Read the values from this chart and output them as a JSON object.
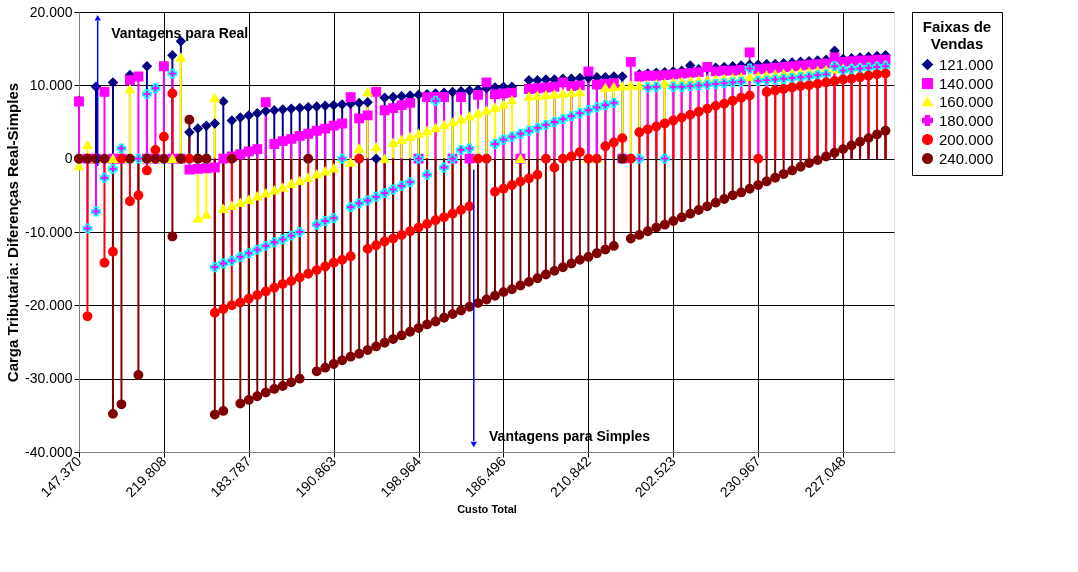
{
  "chart_data": {
    "type": "lollipop",
    "xlabel": "Custo Total",
    "ylabel": "Carga Tributaria: Diferenças Real-Simples",
    "legend_title": "Faixas de Vendas",
    "legend": "right",
    "grid": true,
    "annotations": [
      "Vantagens para Real",
      "Vantagens para Simples"
    ],
    "categories": [
      "147.370",
      null,
      null,
      null,
      null,
      null,
      null,
      null,
      null,
      null,
      "219.808",
      null,
      null,
      null,
      null,
      null,
      null,
      null,
      null,
      null,
      "183.787",
      null,
      null,
      null,
      null,
      null,
      null,
      null,
      null,
      null,
      "190.863",
      null,
      null,
      null,
      null,
      null,
      null,
      null,
      null,
      null,
      "198.964",
      null,
      null,
      null,
      null,
      null,
      null,
      null,
      null,
      null,
      "186.496",
      null,
      null,
      null,
      null,
      null,
      null,
      null,
      null,
      null,
      "210.842",
      null,
      null,
      null,
      null,
      null,
      null,
      null,
      null,
      null,
      "202.523",
      null,
      null,
      null,
      null,
      null,
      null,
      null,
      null,
      null,
      "230.967",
      null,
      null,
      null,
      null,
      null,
      null,
      null,
      null,
      null,
      "227.048",
      null,
      null,
      null,
      null,
      null
    ],
    "ylim": [
      -40000,
      20000
    ],
    "yticks": [
      {
        "value": -40000,
        "label": "-40.000"
      },
      {
        "value": -30000,
        "label": "-30.000"
      },
      {
        "value": -20000,
        "label": "-20.000"
      },
      {
        "value": -10000,
        "label": "-10.000"
      },
      0,
      {
        "value": 10000,
        "label": "10.000"
      },
      {
        "value": 20000,
        "label": "20.000"
      }
    ],
    "series": [
      {
        "name": "121.000",
        "color": "#000080",
        "marker": "diamond",
        "values": [
          7900,
          0,
          9800,
          0,
          10400,
          0,
          11400,
          0,
          12600,
          0,
          0,
          14100,
          16000,
          3600,
          4100,
          4500,
          4800,
          7800,
          5200,
          5600,
          5900,
          6200,
          6500,
          6600,
          6700,
          6800,
          6900,
          7000,
          7100,
          7200,
          7300,
          7400,
          7500,
          7600,
          7700,
          0,
          8300,
          8400,
          8500,
          8600,
          8700,
          8800,
          8900,
          9000,
          9100,
          9200,
          9300,
          9400,
          9600,
          9700,
          9800,
          9800,
          0,
          10700,
          10700,
          10800,
          10800,
          10900,
          10900,
          11000,
          11000,
          11100,
          11100,
          11200,
          11200,
          0,
          11500,
          11600,
          11700,
          11800,
          11900,
          12000,
          12700,
          12200,
          12300,
          12400,
          12500,
          12600,
          12700,
          12800,
          12800,
          12900,
          12900,
          13000,
          13100,
          13200,
          13300,
          13400,
          13500,
          14700,
          13600,
          13700,
          13800,
          13900,
          14000,
          14100
        ]
      },
      {
        "name": "140.000",
        "color": "#ff00ff",
        "marker": "square",
        "values": [
          7800,
          0,
          0,
          9100,
          0,
          0,
          10700,
          11200,
          0,
          0,
          12600,
          0,
          0,
          -1500,
          -1400,
          -1300,
          -1200,
          0,
          300,
          600,
          1000,
          1300,
          7700,
          2000,
          2400,
          2700,
          3100,
          3400,
          3800,
          4100,
          4500,
          4800,
          8400,
          5500,
          5900,
          9100,
          6600,
          6900,
          7300,
          7600,
          0,
          8400,
          8400,
          8400,
          0,
          8400,
          0,
          8700,
          10400,
          8800,
          8900,
          9000,
          0,
          9500,
          9600,
          9700,
          9800,
          10400,
          9900,
          10000,
          11900,
          10100,
          10200,
          10300,
          0,
          13200,
          11200,
          11300,
          11300,
          11400,
          11500,
          11600,
          11700,
          11800,
          12500,
          11900,
          12000,
          12000,
          12100,
          14500,
          12200,
          12300,
          12400,
          12500,
          12600,
          12700,
          12800,
          12900,
          13000,
          13800,
          13200,
          13300,
          13400,
          13400,
          13500,
          13500
        ]
      },
      {
        "name": "160.000",
        "color": "#ffff00",
        "marker": "triangle",
        "values": [
          -1000,
          1900,
          0,
          0,
          0,
          0,
          9500,
          null,
          0,
          0,
          null,
          0,
          13800,
          null,
          -8100,
          -7600,
          8300,
          -6800,
          -6400,
          -6000,
          -5600,
          -5100,
          -4700,
          -4300,
          -3900,
          -3400,
          -3000,
          -2600,
          -2100,
          -1700,
          -1300,
          0,
          -500,
          1400,
          9100,
          1600,
          0,
          2200,
          2600,
          3000,
          3400,
          3800,
          4200,
          4600,
          5000,
          5400,
          5800,
          6200,
          6600,
          7000,
          7400,
          8000,
          0,
          8500,
          8600,
          8700,
          8800,
          8900,
          9000,
          9100,
          0,
          0,
          9700,
          9800,
          9900,
          10000,
          10000,
          10100,
          10200,
          10300,
          10400,
          10500,
          10600,
          10700,
          10700,
          10800,
          10900,
          11000,
          11100,
          11200,
          11300,
          11400,
          11500,
          11600,
          11700,
          11800,
          11900,
          12000,
          12100,
          12200,
          12300,
          12400,
          12500,
          12600,
          12700,
          12800
        ]
      },
      {
        "name": "180.000",
        "color": "#ff00ff",
        "marker": "cross",
        "values": [
          0,
          -9500,
          -7200,
          -2600,
          -1400,
          1400,
          0,
          0,
          8800,
          9600,
          0,
          11600,
          0,
          0,
          0,
          0,
          -14800,
          -14300,
          -13900,
          -13400,
          -12900,
          -12400,
          -11900,
          -11400,
          -11000,
          -10500,
          -10000,
          0,
          -9000,
          -8500,
          -8100,
          0,
          -6600,
          -6100,
          -5700,
          -5200,
          -4700,
          -4200,
          -3700,
          -3200,
          0,
          -2200,
          7900,
          -1200,
          0,
          1200,
          1400,
          0,
          0,
          2000,
          2600,
          3000,
          3400,
          3800,
          4200,
          4600,
          5000,
          5400,
          5800,
          6200,
          6600,
          7000,
          7300,
          7600,
          0,
          0,
          0,
          9700,
          9800,
          0,
          9800,
          9800,
          9900,
          10000,
          10100,
          10200,
          10300,
          10400,
          10500,
          12300,
          10600,
          10700,
          10800,
          10900,
          11000,
          11100,
          11200,
          11400,
          11500,
          12600,
          12000,
          12200,
          12300,
          12400,
          12500,
          12600
        ]
      },
      {
        "name": "200.000",
        "color": "#ff0000",
        "marker": "circle",
        "values": [
          0,
          -21500,
          0,
          -14200,
          -12700,
          0,
          -5800,
          -5000,
          -1600,
          1200,
          3000,
          8900,
          0,
          0,
          0,
          0,
          -21000,
          -20500,
          -20000,
          -19600,
          -19100,
          -18600,
          -18100,
          -17600,
          -17100,
          -16700,
          -16200,
          -15700,
          -15200,
          -14700,
          -14200,
          -13800,
          -13300,
          0,
          -12300,
          -11800,
          -11300,
          -10900,
          -10400,
          -9900,
          -9400,
          -8900,
          -8400,
          -8000,
          -7500,
          -7000,
          -6500,
          0,
          0,
          -4500,
          -4100,
          -3600,
          -3100,
          -2700,
          -2200,
          0,
          -1200,
          0,
          300,
          900,
          0,
          0,
          1700,
          2200,
          2800,
          0,
          3600,
          4000,
          4400,
          4800,
          5200,
          5600,
          6000,
          6400,
          6800,
          7200,
          7500,
          7900,
          8300,
          8600,
          0,
          9100,
          9300,
          9500,
          9700,
          9900,
          10000,
          10200,
          10400,
          10600,
          10800,
          10900,
          11100,
          11300,
          11500,
          11600
        ]
      },
      {
        "name": "240.000",
        "color": "#800000",
        "marker": "circle",
        "values": [
          0,
          0,
          0,
          0,
          -34800,
          -33500,
          0,
          -29500,
          0,
          0,
          0,
          -10600,
          0,
          5300,
          0,
          0,
          -34900,
          -34400,
          0,
          -33400,
          -32900,
          -32400,
          -31900,
          -31400,
          -31000,
          -30500,
          -30000,
          0,
          -29000,
          -28500,
          -28000,
          -27500,
          -27000,
          -26600,
          -26100,
          -25600,
          -25100,
          -24600,
          -24100,
          -23600,
          -23100,
          -22600,
          -22200,
          -21700,
          -21200,
          -20700,
          -20200,
          -19700,
          -19200,
          -18700,
          -18200,
          -17800,
          -17300,
          -16800,
          -16300,
          -15800,
          -15300,
          -14800,
          -14300,
          -13800,
          -13400,
          -12900,
          -12400,
          -11900,
          0,
          -10900,
          -10400,
          -9900,
          -9400,
          -9000,
          -8500,
          -8000,
          -7500,
          -7000,
          -6500,
          -6000,
          -5500,
          -5000,
          -4600,
          -4100,
          -3600,
          -3100,
          -2600,
          -2100,
          -1600,
          -1100,
          -600,
          -200,
          300,
          800,
          1300,
          1800,
          2300,
          2800,
          3300,
          3800
        ]
      }
    ]
  }
}
